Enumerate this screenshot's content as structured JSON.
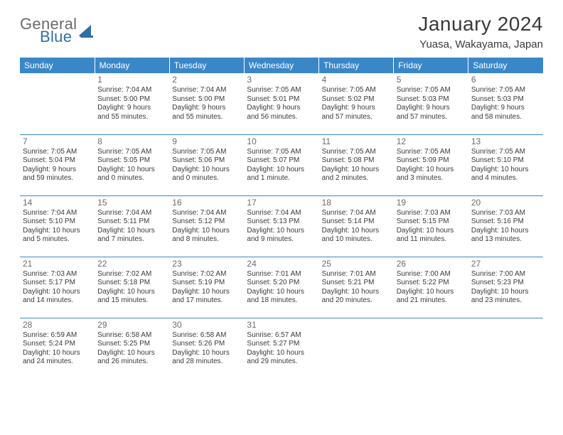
{
  "brand": {
    "part1": "General",
    "part2": "Blue"
  },
  "title": "January 2024",
  "location": "Yuasa, Wakayama, Japan",
  "colors": {
    "brand_blue": "#3a87c8",
    "logo_blue": "#2f6fa8",
    "text_gray": "#3a3a3a",
    "daynum_gray": "#6b6b6b",
    "bg": "#ffffff"
  },
  "weekdays": [
    "Sunday",
    "Monday",
    "Tuesday",
    "Wednesday",
    "Thursday",
    "Friday",
    "Saturday"
  ],
  "weeks": [
    [
      null,
      {
        "n": "1",
        "sr": "Sunrise: 7:04 AM",
        "ss": "Sunset: 5:00 PM",
        "d1": "Daylight: 9 hours",
        "d2": "and 55 minutes."
      },
      {
        "n": "2",
        "sr": "Sunrise: 7:04 AM",
        "ss": "Sunset: 5:00 PM",
        "d1": "Daylight: 9 hours",
        "d2": "and 55 minutes."
      },
      {
        "n": "3",
        "sr": "Sunrise: 7:05 AM",
        "ss": "Sunset: 5:01 PM",
        "d1": "Daylight: 9 hours",
        "d2": "and 56 minutes."
      },
      {
        "n": "4",
        "sr": "Sunrise: 7:05 AM",
        "ss": "Sunset: 5:02 PM",
        "d1": "Daylight: 9 hours",
        "d2": "and 57 minutes."
      },
      {
        "n": "5",
        "sr": "Sunrise: 7:05 AM",
        "ss": "Sunset: 5:03 PM",
        "d1": "Daylight: 9 hours",
        "d2": "and 57 minutes."
      },
      {
        "n": "6",
        "sr": "Sunrise: 7:05 AM",
        "ss": "Sunset: 5:03 PM",
        "d1": "Daylight: 9 hours",
        "d2": "and 58 minutes."
      }
    ],
    [
      {
        "n": "7",
        "sr": "Sunrise: 7:05 AM",
        "ss": "Sunset: 5:04 PM",
        "d1": "Daylight: 9 hours",
        "d2": "and 59 minutes."
      },
      {
        "n": "8",
        "sr": "Sunrise: 7:05 AM",
        "ss": "Sunset: 5:05 PM",
        "d1": "Daylight: 10 hours",
        "d2": "and 0 minutes."
      },
      {
        "n": "9",
        "sr": "Sunrise: 7:05 AM",
        "ss": "Sunset: 5:06 PM",
        "d1": "Daylight: 10 hours",
        "d2": "and 0 minutes."
      },
      {
        "n": "10",
        "sr": "Sunrise: 7:05 AM",
        "ss": "Sunset: 5:07 PM",
        "d1": "Daylight: 10 hours",
        "d2": "and 1 minute."
      },
      {
        "n": "11",
        "sr": "Sunrise: 7:05 AM",
        "ss": "Sunset: 5:08 PM",
        "d1": "Daylight: 10 hours",
        "d2": "and 2 minutes."
      },
      {
        "n": "12",
        "sr": "Sunrise: 7:05 AM",
        "ss": "Sunset: 5:09 PM",
        "d1": "Daylight: 10 hours",
        "d2": "and 3 minutes."
      },
      {
        "n": "13",
        "sr": "Sunrise: 7:05 AM",
        "ss": "Sunset: 5:10 PM",
        "d1": "Daylight: 10 hours",
        "d2": "and 4 minutes."
      }
    ],
    [
      {
        "n": "14",
        "sr": "Sunrise: 7:04 AM",
        "ss": "Sunset: 5:10 PM",
        "d1": "Daylight: 10 hours",
        "d2": "and 5 minutes."
      },
      {
        "n": "15",
        "sr": "Sunrise: 7:04 AM",
        "ss": "Sunset: 5:11 PM",
        "d1": "Daylight: 10 hours",
        "d2": "and 7 minutes."
      },
      {
        "n": "16",
        "sr": "Sunrise: 7:04 AM",
        "ss": "Sunset: 5:12 PM",
        "d1": "Daylight: 10 hours",
        "d2": "and 8 minutes."
      },
      {
        "n": "17",
        "sr": "Sunrise: 7:04 AM",
        "ss": "Sunset: 5:13 PM",
        "d1": "Daylight: 10 hours",
        "d2": "and 9 minutes."
      },
      {
        "n": "18",
        "sr": "Sunrise: 7:04 AM",
        "ss": "Sunset: 5:14 PM",
        "d1": "Daylight: 10 hours",
        "d2": "and 10 minutes."
      },
      {
        "n": "19",
        "sr": "Sunrise: 7:03 AM",
        "ss": "Sunset: 5:15 PM",
        "d1": "Daylight: 10 hours",
        "d2": "and 11 minutes."
      },
      {
        "n": "20",
        "sr": "Sunrise: 7:03 AM",
        "ss": "Sunset: 5:16 PM",
        "d1": "Daylight: 10 hours",
        "d2": "and 13 minutes."
      }
    ],
    [
      {
        "n": "21",
        "sr": "Sunrise: 7:03 AM",
        "ss": "Sunset: 5:17 PM",
        "d1": "Daylight: 10 hours",
        "d2": "and 14 minutes."
      },
      {
        "n": "22",
        "sr": "Sunrise: 7:02 AM",
        "ss": "Sunset: 5:18 PM",
        "d1": "Daylight: 10 hours",
        "d2": "and 15 minutes."
      },
      {
        "n": "23",
        "sr": "Sunrise: 7:02 AM",
        "ss": "Sunset: 5:19 PM",
        "d1": "Daylight: 10 hours",
        "d2": "and 17 minutes."
      },
      {
        "n": "24",
        "sr": "Sunrise: 7:01 AM",
        "ss": "Sunset: 5:20 PM",
        "d1": "Daylight: 10 hours",
        "d2": "and 18 minutes."
      },
      {
        "n": "25",
        "sr": "Sunrise: 7:01 AM",
        "ss": "Sunset: 5:21 PM",
        "d1": "Daylight: 10 hours",
        "d2": "and 20 minutes."
      },
      {
        "n": "26",
        "sr": "Sunrise: 7:00 AM",
        "ss": "Sunset: 5:22 PM",
        "d1": "Daylight: 10 hours",
        "d2": "and 21 minutes."
      },
      {
        "n": "27",
        "sr": "Sunrise: 7:00 AM",
        "ss": "Sunset: 5:23 PM",
        "d1": "Daylight: 10 hours",
        "d2": "and 23 minutes."
      }
    ],
    [
      {
        "n": "28",
        "sr": "Sunrise: 6:59 AM",
        "ss": "Sunset: 5:24 PM",
        "d1": "Daylight: 10 hours",
        "d2": "and 24 minutes."
      },
      {
        "n": "29",
        "sr": "Sunrise: 6:58 AM",
        "ss": "Sunset: 5:25 PM",
        "d1": "Daylight: 10 hours",
        "d2": "and 26 minutes."
      },
      {
        "n": "30",
        "sr": "Sunrise: 6:58 AM",
        "ss": "Sunset: 5:26 PM",
        "d1": "Daylight: 10 hours",
        "d2": "and 28 minutes."
      },
      {
        "n": "31",
        "sr": "Sunrise: 6:57 AM",
        "ss": "Sunset: 5:27 PM",
        "d1": "Daylight: 10 hours",
        "d2": "and 29 minutes."
      },
      null,
      null,
      null
    ]
  ]
}
